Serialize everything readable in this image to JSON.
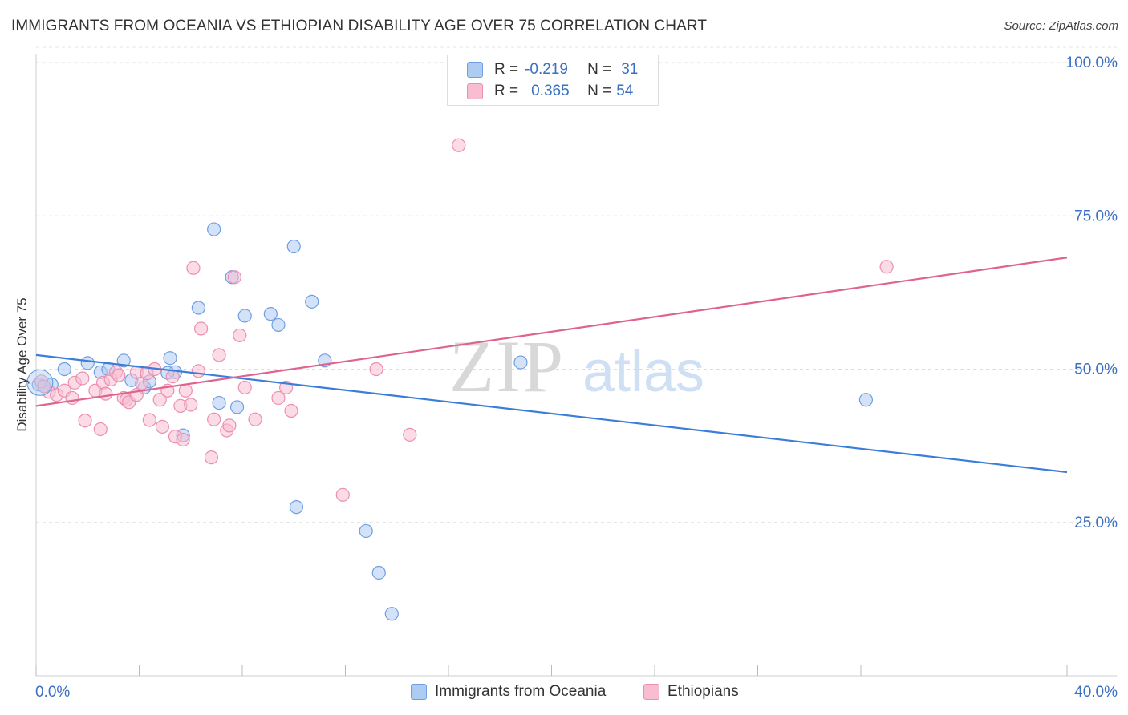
{
  "header": {
    "title": "IMMIGRANTS FROM OCEANIA VS ETHIOPIAN DISABILITY AGE OVER 75 CORRELATION CHART",
    "source": "Source: ZipAtlas.com"
  },
  "legend": {
    "r_label": "R =",
    "n_label": "N =",
    "series": [
      {
        "r": "-0.219",
        "n": "31",
        "fill": "#aecbf2",
        "stroke": "#6f9fe0"
      },
      {
        "r": "0.365",
        "n": "54",
        "fill": "#f8bdd0",
        "stroke": "#ec8fb0"
      }
    ]
  },
  "watermark": {
    "zip": "ZIP",
    "atlas": "atlas"
  },
  "chart_data": {
    "type": "scatter",
    "title": "IMMIGRANTS FROM OCEANIA VS ETHIOPIAN DISABILITY AGE OVER 75 CORRELATION CHART",
    "xlabel": "",
    "ylabel": "Disability Age Over 75",
    "xlim": [
      0,
      40
    ],
    "ylim": [
      0,
      100
    ],
    "x_tick_labels": [
      "0.0%",
      "40.0%"
    ],
    "y_tick_values": [
      25,
      50,
      75,
      100
    ],
    "y_tick_labels": [
      "25.0%",
      "50.0%",
      "75.0%",
      "100.0%"
    ],
    "series": [
      {
        "name": "Immigrants from Oceania",
        "color": "#3b7dd8",
        "fill": "#aecbf2",
        "stroke": "#6f9fe0",
        "trend": {
          "x0": 0,
          "y0": 52.3,
          "x1": 40,
          "y1": 33.2
        },
        "points": [
          [
            0.1,
            47.5
          ],
          [
            0.6,
            47.5
          ],
          [
            1.1,
            50.0
          ],
          [
            2.0,
            51.0
          ],
          [
            2.5,
            49.5
          ],
          [
            2.8,
            50.0
          ],
          [
            3.4,
            51.4
          ],
          [
            3.7,
            48.2
          ],
          [
            4.2,
            47.0
          ],
          [
            4.4,
            48.0
          ],
          [
            5.2,
            51.8
          ],
          [
            5.4,
            49.5
          ],
          [
            5.7,
            39.2
          ],
          [
            6.3,
            60.0
          ],
          [
            6.9,
            72.8
          ],
          [
            7.1,
            44.5
          ],
          [
            7.6,
            65.0
          ],
          [
            7.8,
            43.8
          ],
          [
            8.1,
            58.7
          ],
          [
            9.1,
            59.0
          ],
          [
            9.4,
            57.2
          ],
          [
            10.0,
            70.0
          ],
          [
            10.1,
            27.5
          ],
          [
            10.7,
            61.0
          ],
          [
            11.2,
            51.4
          ],
          [
            12.8,
            23.6
          ],
          [
            13.3,
            16.8
          ],
          [
            13.8,
            10.1
          ],
          [
            18.8,
            51.1
          ],
          [
            32.2,
            45.0
          ],
          [
            5.1,
            49.4
          ]
        ]
      },
      {
        "name": "Ethiopians",
        "color": "#e0628f",
        "fill": "#f8bdd0",
        "stroke": "#ec8fb0",
        "trend": {
          "x0": 0,
          "y0": 44.0,
          "x1": 40,
          "y1": 68.2
        },
        "points": [
          [
            0.2,
            48.0
          ],
          [
            0.5,
            46.3
          ],
          [
            0.8,
            45.8
          ],
          [
            1.1,
            46.5
          ],
          [
            1.4,
            45.3
          ],
          [
            1.5,
            47.8
          ],
          [
            1.8,
            48.5
          ],
          [
            1.9,
            41.6
          ],
          [
            2.3,
            46.5
          ],
          [
            2.5,
            40.2
          ],
          [
            2.6,
            47.8
          ],
          [
            2.9,
            48.3
          ],
          [
            3.1,
            49.5
          ],
          [
            3.2,
            49.0
          ],
          [
            3.4,
            45.3
          ],
          [
            3.5,
            45.0
          ],
          [
            3.6,
            44.6
          ],
          [
            3.9,
            45.8
          ],
          [
            3.9,
            49.5
          ],
          [
            4.1,
            47.7
          ],
          [
            4.3,
            49.3
          ],
          [
            4.4,
            41.7
          ],
          [
            4.8,
            45.0
          ],
          [
            4.9,
            40.6
          ],
          [
            5.1,
            46.5
          ],
          [
            5.3,
            48.8
          ],
          [
            5.4,
            39.0
          ],
          [
            5.6,
            44.0
          ],
          [
            5.7,
            38.5
          ],
          [
            5.8,
            46.5
          ],
          [
            6.1,
            66.5
          ],
          [
            6.3,
            49.7
          ],
          [
            6.4,
            56.6
          ],
          [
            6.8,
            35.6
          ],
          [
            6.9,
            41.8
          ],
          [
            7.1,
            52.3
          ],
          [
            7.4,
            40.0
          ],
          [
            7.5,
            40.8
          ],
          [
            7.7,
            65.0
          ],
          [
            7.9,
            55.5
          ],
          [
            8.1,
            47.0
          ],
          [
            8.5,
            41.8
          ],
          [
            9.4,
            45.3
          ],
          [
            9.7,
            47.0
          ],
          [
            9.9,
            43.2
          ],
          [
            11.9,
            29.5
          ],
          [
            13.2,
            50.0
          ],
          [
            14.5,
            39.3
          ],
          [
            16.4,
            86.5
          ],
          [
            33.0,
            66.7
          ],
          [
            0.3,
            47.2
          ],
          [
            2.7,
            46.0
          ],
          [
            4.6,
            50.0
          ],
          [
            6.0,
            44.2
          ]
        ]
      }
    ]
  }
}
